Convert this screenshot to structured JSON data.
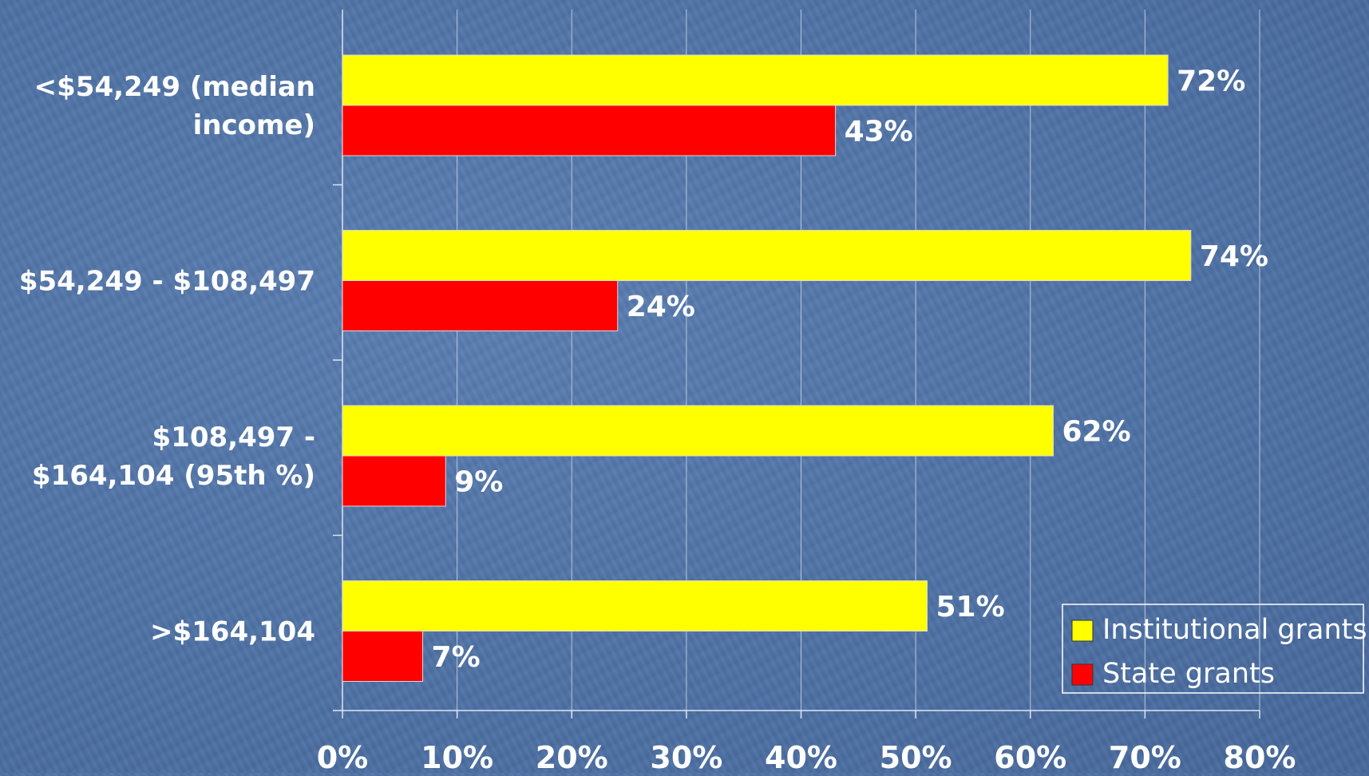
{
  "chart_data": {
    "type": "bar",
    "orientation": "horizontal",
    "categories": [
      [
        "<$54,249 (median",
        "income)"
      ],
      [
        "$54,249 - $108,497"
      ],
      [
        "$108,497 -",
        "$164,104 (95th %)"
      ],
      [
        ">$164,104"
      ]
    ],
    "series": [
      {
        "name": "Institutional grants",
        "color": "#ffff00",
        "values": [
          72,
          74,
          62,
          51
        ],
        "labels": [
          "72%",
          "74%",
          "62%",
          "51%"
        ]
      },
      {
        "name": "State grants",
        "color": "#ff0000",
        "values": [
          43,
          24,
          9,
          7
        ],
        "labels": [
          "43%",
          "24%",
          "9%",
          "7%"
        ]
      }
    ],
    "xlim": [
      0,
      80
    ],
    "x_ticks": [
      "0%",
      "10%",
      "20%",
      "30%",
      "40%",
      "50%",
      "60%",
      "70%",
      "80%"
    ],
    "grid": true,
    "legend_position": "bottom-right",
    "title": "",
    "xlabel": "",
    "ylabel": ""
  }
}
